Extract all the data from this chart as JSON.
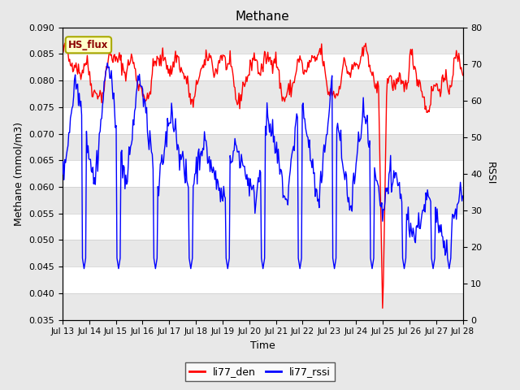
{
  "title": "Methane",
  "xlabel": "Time",
  "ylabel_left": "Methane (mmol/m3)",
  "ylabel_right": "RSSI",
  "ylim_left": [
    0.035,
    0.09
  ],
  "ylim_right": [
    0,
    80
  ],
  "background_color": "#e8e8e8",
  "band_color": "#ffffff",
  "legend_label_red": "li77_den",
  "legend_label_blue": "li77_rssi",
  "hs_flux_label": "HS_flux",
  "red_color": "#ff0000",
  "blue_color": "#0000ff",
  "x_tick_labels": [
    "Jul 13",
    "Jul 14",
    "Jul 15",
    "Jul 16",
    "Jul 17",
    "Jul 18",
    "Jul 19",
    "Jul 20",
    "Jul 21",
    "Jul 22",
    "Jul 23",
    "Jul 24",
    "Jul 25",
    "Jul 26",
    "Jul 27",
    "Jul 28"
  ],
  "figsize": [
    6.4,
    4.8
  ],
  "dpi": 100
}
